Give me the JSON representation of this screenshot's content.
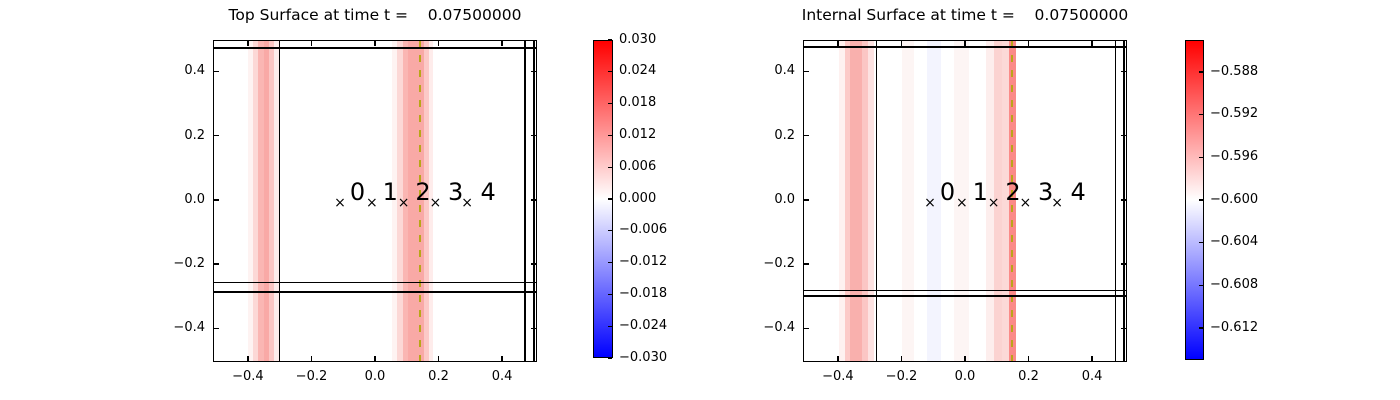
{
  "figure": {
    "background": "#ffffff",
    "text_color": "#000000",
    "dashed_line_color": "#b9a619",
    "mesh_line_color": "#000000",
    "colormap": {
      "name": "blue-white-red",
      "top": "#ff0000",
      "mid": "#ffffff",
      "bottom": "#0000ff"
    }
  },
  "chart_data": [
    {
      "type": "heatmap",
      "title": "Top Surface at time t =    0.07500000",
      "xlim": [
        -0.51,
        0.51
      ],
      "ylim": [
        -0.505,
        0.498
      ],
      "grid": false,
      "xtick_values": [
        -0.4,
        -0.2,
        0.0,
        0.2,
        0.4
      ],
      "xtick_labels": [
        "−0.4",
        "−0.2",
        "0.0",
        "0.2",
        "0.4"
      ],
      "ytick_values": [
        0.4,
        0.2,
        0.0,
        -0.2,
        -0.4
      ],
      "ytick_labels": [
        "0.4",
        "0.2",
        "0.0",
        "−0.2",
        "−0.4"
      ],
      "bands": [
        {
          "x0": -0.4,
          "x1": -0.384,
          "color": "#fef3f2",
          "value": 0.0014
        },
        {
          "x0": -0.384,
          "x1": -0.368,
          "color": "#fcd8d6",
          "value": 0.0046
        },
        {
          "x0": -0.368,
          "x1": -0.35,
          "color": "#fab6b3",
          "value": 0.0086
        },
        {
          "x0": -0.35,
          "x1": -0.334,
          "color": "#f9a9a6",
          "value": 0.0101
        },
        {
          "x0": -0.334,
          "x1": -0.318,
          "color": "#fbc6c4",
          "value": 0.0067
        },
        {
          "x0": -0.318,
          "x1": -0.302,
          "color": "#fdeceb",
          "value": 0.0022
        },
        {
          "x0": 0.054,
          "x1": 0.069,
          "color": "#fef3f2",
          "value": 0.0014
        },
        {
          "x0": 0.069,
          "x1": 0.088,
          "color": "#fcd8d6",
          "value": 0.0046
        },
        {
          "x0": 0.088,
          "x1": 0.104,
          "color": "#fab6b3",
          "value": 0.0086
        },
        {
          "x0": 0.104,
          "x1": 0.154,
          "color": "#f9a9a6",
          "value": 0.0101
        },
        {
          "x0": 0.154,
          "x1": 0.17,
          "color": "#fcc9c7",
          "value": 0.0063
        },
        {
          "x0": 0.17,
          "x1": 0.183,
          "color": "#feeceb",
          "value": 0.0022
        }
      ],
      "mesh_lines_x": [
        -0.3,
        0.472,
        0.5
      ],
      "mesh_lines_y": [
        -0.258,
        -0.287,
        0.473
      ],
      "dashed_line_x": 0.142,
      "markers": {
        "symbol": "×",
        "y": -0.01,
        "xs": [
          -0.11,
          -0.01,
          0.09,
          0.19,
          0.29
        ],
        "labels": [
          "0",
          "1",
          "2",
          "3",
          "4"
        ],
        "label_xs": [
          -0.055,
          0.048,
          0.151,
          0.254,
          0.356
        ],
        "label_y": 0.024
      },
      "colorbar": {
        "vmin": -0.03,
        "vmax": 0.03,
        "tick_values": [
          0.03,
          0.024,
          0.018,
          0.012,
          0.006,
          0.0,
          -0.006,
          -0.012,
          -0.018,
          -0.024,
          -0.03
        ],
        "tick_labels": [
          "0.030",
          "0.024",
          "0.018",
          "0.012",
          "0.006",
          "0.000",
          "−0.006",
          "−0.012",
          "−0.018",
          "−0.024",
          "−0.030"
        ]
      }
    },
    {
      "type": "heatmap",
      "title": "Internal Surface at time t =    0.07500000",
      "xlim": [
        -0.51,
        0.51
      ],
      "ylim": [
        -0.505,
        0.498
      ],
      "grid": false,
      "xtick_values": [
        -0.4,
        -0.2,
        0.0,
        0.2,
        0.4
      ],
      "xtick_labels": [
        "−0.4",
        "−0.2",
        "0.0",
        "0.2",
        "0.4"
      ],
      "ytick_values": [
        0.4,
        0.2,
        0.0,
        -0.2,
        -0.4
      ],
      "ytick_labels": [
        "0.4",
        "0.2",
        "0.0",
        "−0.2",
        "−0.4"
      ],
      "bands": [
        {
          "x0": -0.398,
          "x1": -0.379,
          "color": "#fef1f0",
          "value": -0.5992
        },
        {
          "x0": -0.379,
          "x1": -0.361,
          "color": "#fccac8",
          "value": -0.597
        },
        {
          "x0": -0.361,
          "x1": -0.323,
          "color": "#f9b0ad",
          "value": -0.5954
        },
        {
          "x0": -0.323,
          "x1": -0.305,
          "color": "#fbc6c4",
          "value": -0.5967
        },
        {
          "x0": -0.305,
          "x1": -0.287,
          "color": "#fde2e1",
          "value": -0.5983
        },
        {
          "x0": -0.199,
          "x1": -0.162,
          "color": "#fdf5f4",
          "value": -0.5995
        },
        {
          "x0": -0.121,
          "x1": -0.075,
          "color": "#f3f4fe",
          "value": -0.6007
        },
        {
          "x0": -0.034,
          "x1": 0.012,
          "color": "#fdf5f4",
          "value": -0.5995
        },
        {
          "x0": 0.065,
          "x1": 0.09,
          "color": "#fdeeed",
          "value": -0.5991
        },
        {
          "x0": 0.09,
          "x1": 0.115,
          "color": "#fbd3d1",
          "value": -0.5975
        },
        {
          "x0": 0.115,
          "x1": 0.138,
          "color": "#fcd9d7",
          "value": -0.5978
        },
        {
          "x0": 0.138,
          "x1": 0.162,
          "color": "#fb8b89",
          "value": -0.5932
        }
      ],
      "mesh_lines_x": [
        -0.279,
        0.473,
        0.5
      ],
      "mesh_lines_y": [
        -0.283,
        -0.299,
        0.476
      ],
      "dashed_line_x": 0.149,
      "markers": {
        "symbol": "×",
        "y": -0.01,
        "xs": [
          -0.11,
          -0.01,
          0.09,
          0.19,
          0.29
        ],
        "labels": [
          "0",
          "1",
          "2",
          "3",
          "4"
        ],
        "label_xs": [
          -0.055,
          0.048,
          0.151,
          0.254,
          0.356
        ],
        "label_y": 0.024
      },
      "colorbar": {
        "vmin": -0.615,
        "vmax": -0.585,
        "tick_values": [
          -0.588,
          -0.592,
          -0.596,
          -0.6,
          -0.604,
          -0.608,
          -0.612
        ],
        "tick_labels": [
          "−0.588",
          "−0.592",
          "−0.596",
          "−0.600",
          "−0.604",
          "−0.608",
          "−0.612"
        ]
      }
    }
  ]
}
